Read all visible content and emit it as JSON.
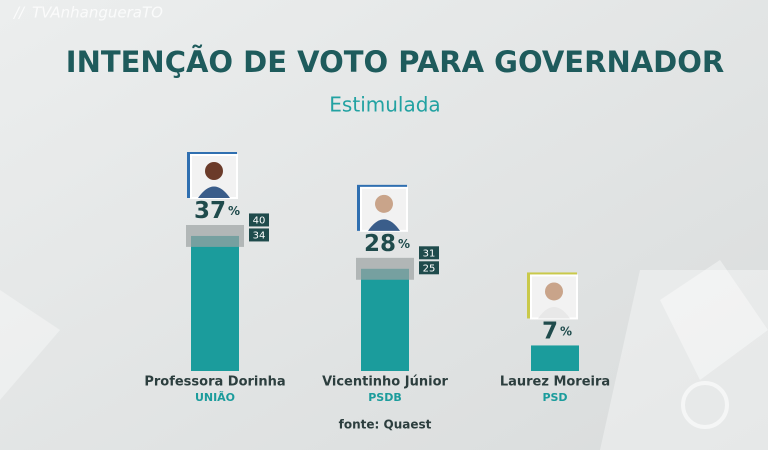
{
  "chart_data": {
    "type": "bar",
    "watermark": "TVAnhangueraTO",
    "title": "INTENÇÃO DE VOTO PARA GOVERNADOR",
    "subtitle": "Estimulada",
    "categories": [
      "Professora Dorinha",
      "Vicentinho Júnior",
      "Laurez Moreira"
    ],
    "parties": [
      "UNIÃO",
      "PSDB",
      "PSD"
    ],
    "values": [
      37,
      28,
      7
    ],
    "value_labels": [
      "37%",
      "28%",
      "7%"
    ],
    "low": [
      34,
      25,
      null
    ],
    "high": [
      40,
      31,
      null
    ],
    "color": "#1b9c9c",
    "source": "fonte: Quaest"
  }
}
